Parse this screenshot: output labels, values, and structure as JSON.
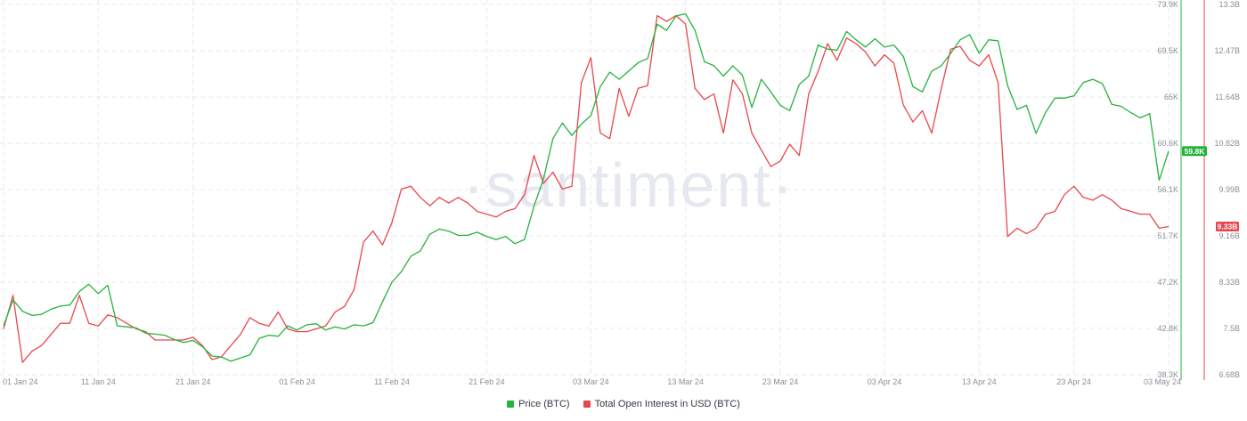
{
  "watermark": "·santiment·",
  "chart_data": {
    "type": "line",
    "x_labels": [
      "01 Jan 24",
      "11 Jan 24",
      "21 Jan 24",
      "01 Feb 24",
      "11 Feb 24",
      "21 Feb 24",
      "03 Mar 24",
      "13 Mar 24",
      "23 Mar 24",
      "03 Apr 24",
      "13 Apr 24",
      "23 Apr 24",
      "03 May 24"
    ],
    "x_range_days": [
      0,
      123
    ],
    "left_axis": {
      "series": "Price (BTC)",
      "ticks": [
        "73.9K",
        "69.5K",
        "65K",
        "60.6K",
        "56.1K",
        "51.7K",
        "47.2K",
        "42.8K",
        "38.3K"
      ],
      "range": [
        38300,
        73900
      ]
    },
    "right_axis": {
      "series": "Total Open Interest in USD (BTC)",
      "ticks": [
        "13.3B",
        "12.47B",
        "11.64B",
        "10.82B",
        "9.99B",
        "9.16B",
        "8.33B",
        "7.5B",
        "6.68B"
      ],
      "range": [
        6.68,
        13.3
      ]
    },
    "current_values": {
      "price": "59.8K",
      "open_interest": "9.33B"
    },
    "grid": true,
    "legend_position": "bottom-center",
    "series": [
      {
        "name": "Price (BTC)",
        "color": "#26b33c",
        "axis": "left",
        "points": [
          [
            0,
            43000
          ],
          [
            1,
            45500
          ],
          [
            2,
            44400
          ],
          [
            3,
            44000
          ],
          [
            4,
            44100
          ],
          [
            5,
            44600
          ],
          [
            6,
            44900
          ],
          [
            7,
            45000
          ],
          [
            8,
            46300
          ],
          [
            9,
            47000
          ],
          [
            10,
            46100
          ],
          [
            11,
            46900
          ],
          [
            12,
            43000
          ],
          [
            13,
            42900
          ],
          [
            14,
            42800
          ],
          [
            15,
            42300
          ],
          [
            16,
            42200
          ],
          [
            17,
            42100
          ],
          [
            18,
            41700
          ],
          [
            19,
            41400
          ],
          [
            20,
            41600
          ],
          [
            21,
            41000
          ],
          [
            22,
            40100
          ],
          [
            23,
            40000
          ],
          [
            24,
            39600
          ],
          [
            25,
            39900
          ],
          [
            26,
            40200
          ],
          [
            27,
            41800
          ],
          [
            28,
            42100
          ],
          [
            29,
            42000
          ],
          [
            30,
            43000
          ],
          [
            31,
            42600
          ],
          [
            32,
            43100
          ],
          [
            33,
            43200
          ],
          [
            34,
            42600
          ],
          [
            35,
            42900
          ],
          [
            36,
            42700
          ],
          [
            37,
            43100
          ],
          [
            38,
            43000
          ],
          [
            39,
            43300
          ],
          [
            40,
            45300
          ],
          [
            41,
            47200
          ],
          [
            42,
            48200
          ],
          [
            43,
            49700
          ],
          [
            44,
            50200
          ],
          [
            45,
            51800
          ],
          [
            46,
            52300
          ],
          [
            47,
            52100
          ],
          [
            48,
            51700
          ],
          [
            49,
            51700
          ],
          [
            50,
            52000
          ],
          [
            51,
            51600
          ],
          [
            52,
            51300
          ],
          [
            53,
            51600
          ],
          [
            54,
            50900
          ],
          [
            55,
            51300
          ],
          [
            56,
            54500
          ],
          [
            57,
            57100
          ],
          [
            58,
            61000
          ],
          [
            59,
            62500
          ],
          [
            60,
            61300
          ],
          [
            61,
            62400
          ],
          [
            62,
            63200
          ],
          [
            63,
            66000
          ],
          [
            64,
            67400
          ],
          [
            65,
            66700
          ],
          [
            66,
            67500
          ],
          [
            67,
            68300
          ],
          [
            68,
            68700
          ],
          [
            69,
            72000
          ],
          [
            70,
            71400
          ],
          [
            71,
            72800
          ],
          [
            72,
            73000
          ],
          [
            73,
            71400
          ],
          [
            74,
            68400
          ],
          [
            75,
            68000
          ],
          [
            76,
            67000
          ],
          [
            77,
            68000
          ],
          [
            78,
            67100
          ],
          [
            79,
            64000
          ],
          [
            80,
            66700
          ],
          [
            81,
            65500
          ],
          [
            82,
            64200
          ],
          [
            83,
            63700
          ],
          [
            84,
            66200
          ],
          [
            85,
            67000
          ],
          [
            86,
            70000
          ],
          [
            87,
            69600
          ],
          [
            88,
            69500
          ],
          [
            89,
            71300
          ],
          [
            90,
            70500
          ],
          [
            91,
            69800
          ],
          [
            92,
            70600
          ],
          [
            93,
            69800
          ],
          [
            94,
            70000
          ],
          [
            95,
            68900
          ],
          [
            96,
            66000
          ],
          [
            97,
            65500
          ],
          [
            98,
            67500
          ],
          [
            99,
            68000
          ],
          [
            100,
            69200
          ],
          [
            101,
            70500
          ],
          [
            102,
            71000
          ],
          [
            103,
            69200
          ],
          [
            104,
            70500
          ],
          [
            105,
            70400
          ],
          [
            106,
            66100
          ],
          [
            107,
            63800
          ],
          [
            108,
            64200
          ],
          [
            109,
            61500
          ],
          [
            110,
            63500
          ],
          [
            111,
            64900
          ],
          [
            112,
            64900
          ],
          [
            113,
            65100
          ],
          [
            114,
            66400
          ],
          [
            115,
            66700
          ],
          [
            116,
            66300
          ],
          [
            117,
            64300
          ],
          [
            118,
            64100
          ],
          [
            119,
            63500
          ],
          [
            120,
            63000
          ],
          [
            121,
            63400
          ],
          [
            122,
            57000
          ],
          [
            123,
            59800
          ]
        ]
      },
      {
        "name": "Total Open Interest in USD (BTC)",
        "color": "#e8474c",
        "axis": "right",
        "points": [
          [
            0,
            7.5
          ],
          [
            1,
            8.1
          ],
          [
            2,
            6.9
          ],
          [
            3,
            7.1
          ],
          [
            4,
            7.2
          ],
          [
            5,
            7.4
          ],
          [
            6,
            7.6
          ],
          [
            7,
            7.6
          ],
          [
            8,
            8.1
          ],
          [
            9,
            7.6
          ],
          [
            10,
            7.55
          ],
          [
            11,
            7.75
          ],
          [
            12,
            7.7
          ],
          [
            13,
            7.6
          ],
          [
            14,
            7.5
          ],
          [
            15,
            7.45
          ],
          [
            16,
            7.3
          ],
          [
            17,
            7.3
          ],
          [
            18,
            7.3
          ],
          [
            19,
            7.3
          ],
          [
            20,
            7.35
          ],
          [
            21,
            7.2
          ],
          [
            22,
            6.95
          ],
          [
            23,
            7.0
          ],
          [
            24,
            7.2
          ],
          [
            25,
            7.4
          ],
          [
            26,
            7.7
          ],
          [
            27,
            7.6
          ],
          [
            28,
            7.55
          ],
          [
            29,
            7.8
          ],
          [
            30,
            7.5
          ],
          [
            31,
            7.45
          ],
          [
            32,
            7.45
          ],
          [
            33,
            7.5
          ],
          [
            34,
            7.55
          ],
          [
            35,
            7.8
          ],
          [
            36,
            7.9
          ],
          [
            37,
            8.2
          ],
          [
            38,
            9.05
          ],
          [
            39,
            9.25
          ],
          [
            40,
            9.0
          ],
          [
            41,
            9.4
          ],
          [
            42,
            10.0
          ],
          [
            43,
            10.05
          ],
          [
            44,
            9.85
          ],
          [
            45,
            9.7
          ],
          [
            46,
            9.85
          ],
          [
            47,
            9.75
          ],
          [
            48,
            9.85
          ],
          [
            49,
            9.75
          ],
          [
            50,
            9.6
          ],
          [
            51,
            9.55
          ],
          [
            52,
            9.5
          ],
          [
            53,
            9.6
          ],
          [
            54,
            9.65
          ],
          [
            55,
            9.9
          ],
          [
            56,
            10.6
          ],
          [
            57,
            10.1
          ],
          [
            58,
            10.3
          ],
          [
            59,
            10.0
          ],
          [
            60,
            10.05
          ],
          [
            61,
            11.9
          ],
          [
            62,
            12.35
          ],
          [
            63,
            11.0
          ],
          [
            64,
            10.9
          ],
          [
            65,
            11.8
          ],
          [
            66,
            11.3
          ],
          [
            67,
            11.8
          ],
          [
            68,
            11.85
          ],
          [
            69,
            13.1
          ],
          [
            70,
            13.0
          ],
          [
            71,
            13.1
          ],
          [
            72,
            12.95
          ],
          [
            73,
            11.8
          ],
          [
            74,
            11.6
          ],
          [
            75,
            11.7
          ],
          [
            76,
            11.0
          ],
          [
            77,
            11.95
          ],
          [
            78,
            11.7
          ],
          [
            79,
            11.0
          ],
          [
            80,
            10.7
          ],
          [
            81,
            10.4
          ],
          [
            82,
            10.5
          ],
          [
            83,
            10.8
          ],
          [
            84,
            10.6
          ],
          [
            85,
            11.7
          ],
          [
            86,
            12.1
          ],
          [
            87,
            12.6
          ],
          [
            88,
            12.3
          ],
          [
            89,
            12.7
          ],
          [
            90,
            12.6
          ],
          [
            91,
            12.45
          ],
          [
            92,
            12.2
          ],
          [
            93,
            12.4
          ],
          [
            94,
            12.25
          ],
          [
            95,
            11.5
          ],
          [
            96,
            11.2
          ],
          [
            97,
            11.4
          ],
          [
            98,
            11.0
          ],
          [
            99,
            11.8
          ],
          [
            100,
            12.5
          ],
          [
            101,
            12.55
          ],
          [
            102,
            12.3
          ],
          [
            103,
            12.2
          ],
          [
            104,
            12.4
          ],
          [
            105,
            11.9
          ],
          [
            106,
            9.15
          ],
          [
            107,
            9.3
          ],
          [
            108,
            9.2
          ],
          [
            109,
            9.3
          ],
          [
            110,
            9.55
          ],
          [
            111,
            9.6
          ],
          [
            112,
            9.9
          ],
          [
            113,
            10.05
          ],
          [
            114,
            9.85
          ],
          [
            115,
            9.8
          ],
          [
            116,
            9.9
          ],
          [
            117,
            9.8
          ],
          [
            118,
            9.65
          ],
          [
            119,
            9.6
          ],
          [
            120,
            9.55
          ],
          [
            121,
            9.55
          ],
          [
            122,
            9.3
          ],
          [
            123,
            9.33
          ]
        ]
      }
    ]
  }
}
